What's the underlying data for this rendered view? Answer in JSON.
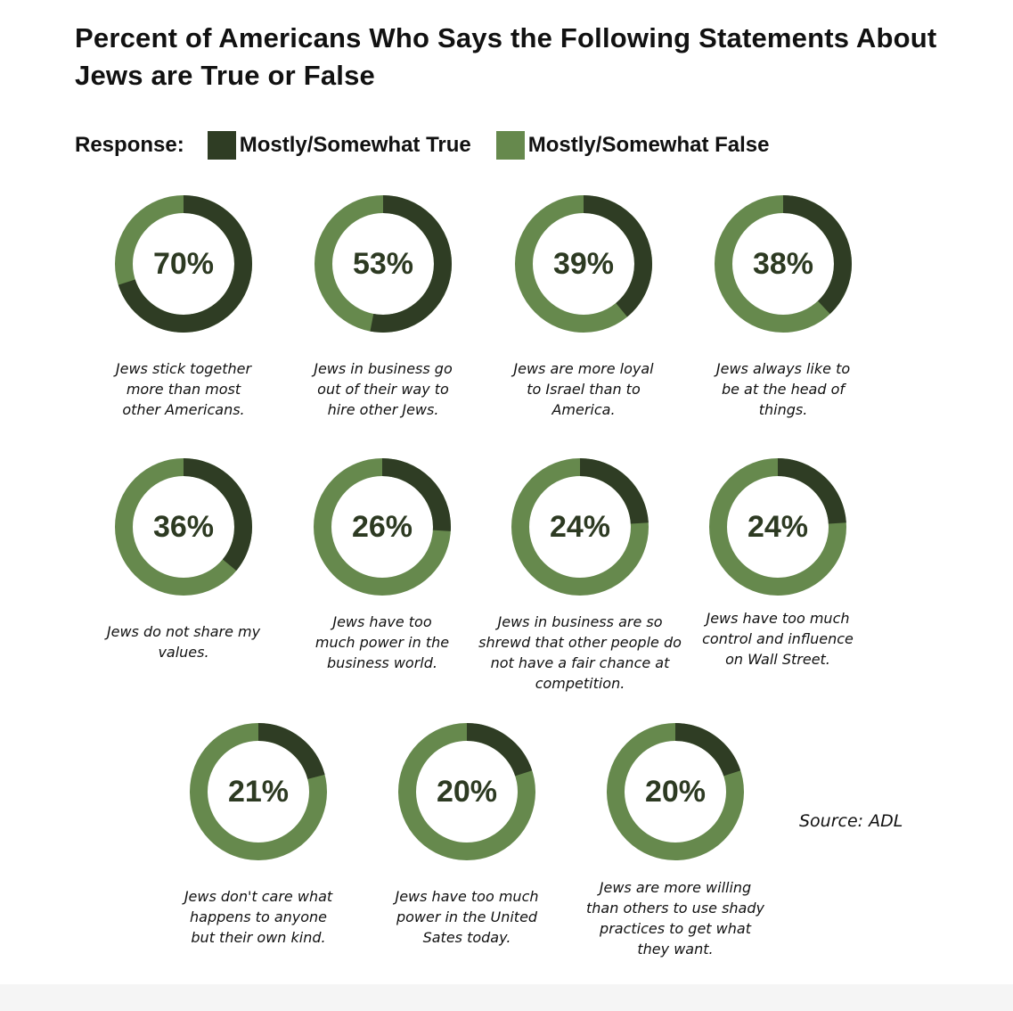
{
  "title": "Percent of Americans Who Says the Following Statements About Jews are True or False",
  "legend": {
    "label": "Response:",
    "items": [
      {
        "name": "Mostly/Somewhat True",
        "color": "#2f3d24"
      },
      {
        "name": "Mostly/Somewhat False",
        "color": "#66894d"
      }
    ]
  },
  "source": "Source: ADL",
  "chart_data": {
    "type": "pie",
    "subtype": "donut-grid",
    "series": [
      {
        "name": "Mostly/Somewhat True",
        "color": "#2f3d24"
      },
      {
        "name": "Mostly/Somewhat False",
        "color": "#66894d"
      }
    ],
    "items": [
      {
        "value": 70,
        "label": "70%",
        "statement": "Jews stick together more than most other Americans."
      },
      {
        "value": 53,
        "label": "53%",
        "statement": "Jews in business go out of their way to hire other Jews."
      },
      {
        "value": 39,
        "label": "39%",
        "statement": "Jews are more loyal to Israel than to America."
      },
      {
        "value": 38,
        "label": "38%",
        "statement": "Jews always like to be at the head of things."
      },
      {
        "value": 36,
        "label": "36%",
        "statement": "Jews do not share my values."
      },
      {
        "value": 26,
        "label": "26%",
        "statement": "Jews have too much power in the business world."
      },
      {
        "value": 24,
        "label": "24%",
        "statement": "Jews in business are so shrewd that other people do not have a fair chance at competition."
      },
      {
        "value": 24,
        "label": "24%",
        "statement": "Jews have too much control and influence on Wall Street."
      },
      {
        "value": 21,
        "label": "21%",
        "statement": "Jews don't care what happens to anyone but their own kind."
      },
      {
        "value": 20,
        "label": "20%",
        "statement": "Jews have too much power in the United Sates today."
      },
      {
        "value": 20,
        "label": "20%",
        "statement": "Jews are more willing than others to use shady practices to get what they want."
      }
    ]
  }
}
